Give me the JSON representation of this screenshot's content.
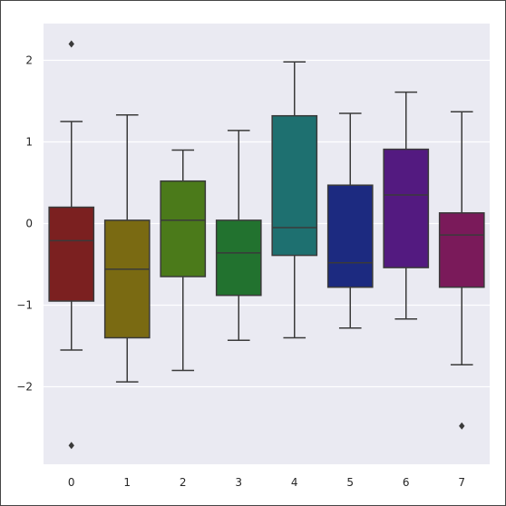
{
  "chart_data": {
    "type": "box",
    "title": "",
    "xlabel": "",
    "ylabel": "",
    "categories": [
      "0",
      "1",
      "2",
      "3",
      "4",
      "5",
      "6",
      "7"
    ],
    "ylim": [
      -2.95,
      2.45
    ],
    "yticks": [
      -2,
      -1,
      0,
      1,
      2
    ],
    "ytick_labels": [
      "−2",
      "−1",
      "0",
      "1",
      "2"
    ],
    "grid": true,
    "colors": {
      "background": "#eaeaf2",
      "grid": "#ffffff",
      "line": "#3a3a3a"
    },
    "boxes": [
      {
        "label": "0",
        "q1": -0.95,
        "median": -0.21,
        "q3": 0.2,
        "whisker_low": -1.55,
        "whisker_high": 1.25,
        "outliers": [
          2.2,
          -2.72
        ],
        "color": "#7b2020"
      },
      {
        "label": "1",
        "q1": -1.4,
        "median": -0.56,
        "q3": 0.04,
        "whisker_low": -1.94,
        "whisker_high": 1.33,
        "outliers": [],
        "color": "#7a6a12"
      },
      {
        "label": "2",
        "q1": -0.65,
        "median": 0.04,
        "q3": 0.52,
        "whisker_low": -1.8,
        "whisker_high": 0.9,
        "outliers": [],
        "color": "#4b7a1a"
      },
      {
        "label": "3",
        "q1": -0.88,
        "median": -0.36,
        "q3": 0.04,
        "whisker_low": -1.43,
        "whisker_high": 1.14,
        "outliers": [],
        "color": "#22722f"
      },
      {
        "label": "4",
        "q1": -0.39,
        "median": -0.05,
        "q3": 1.32,
        "whisker_low": -1.4,
        "whisker_high": 1.98,
        "outliers": [],
        "color": "#1e7070"
      },
      {
        "label": "5",
        "q1": -0.78,
        "median": -0.48,
        "q3": 0.47,
        "whisker_low": -1.28,
        "whisker_high": 1.35,
        "outliers": [],
        "color": "#1c2a80"
      },
      {
        "label": "6",
        "q1": -0.54,
        "median": 0.35,
        "q3": 0.91,
        "whisker_low": -1.17,
        "whisker_high": 1.61,
        "outliers": [],
        "color": "#531a80"
      },
      {
        "label": "7",
        "q1": -0.78,
        "median": -0.14,
        "q3": 0.13,
        "whisker_low": -1.73,
        "whisker_high": 1.37,
        "outliers": [
          -2.48
        ],
        "color": "#7a1a5a"
      }
    ]
  }
}
